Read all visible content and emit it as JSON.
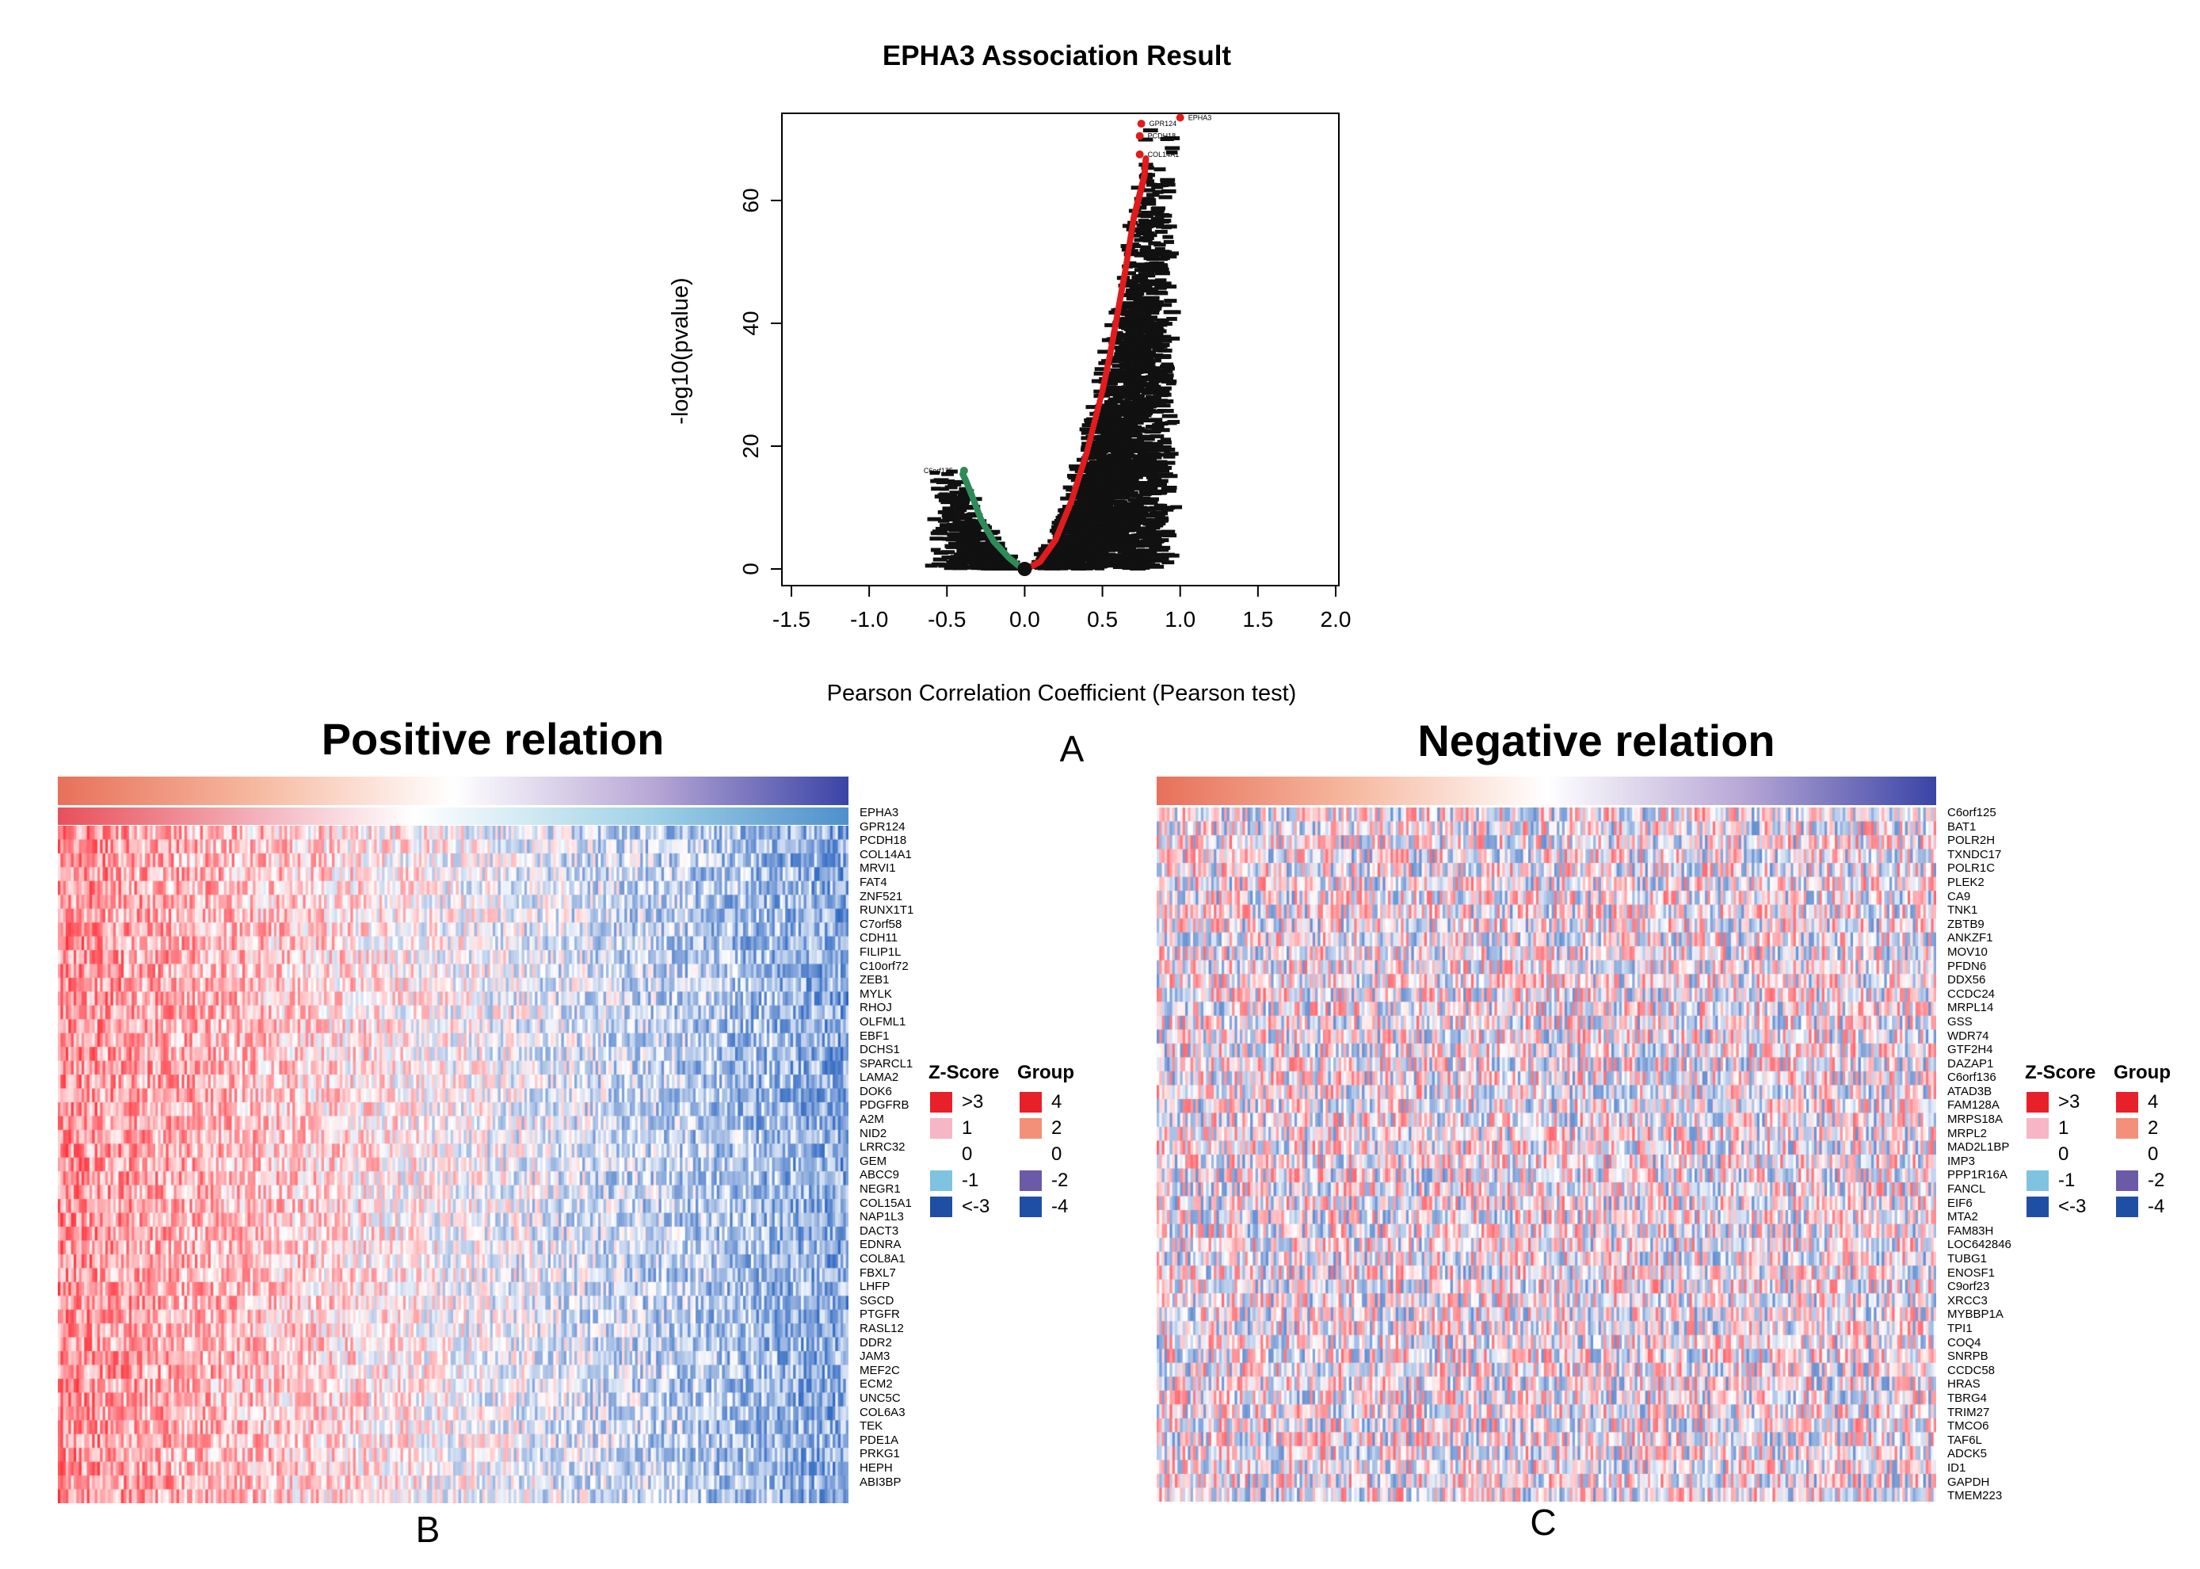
{
  "figure": {
    "panel_letters": {
      "a": "A",
      "b": "B",
      "c": "C"
    }
  },
  "chart_data": [
    {
      "type": "scatter",
      "title": "EPHA3 Association Result",
      "xlabel": "Pearson Correlation Coefficient (Pearson test)",
      "ylabel": "-log10(pvalue)",
      "xlim": [
        -1.5,
        2.0
      ],
      "ylim": [
        0,
        72
      ],
      "xticks": [
        "-1.5",
        "-1.0",
        "-0.5",
        "0.0",
        "0.5",
        "1.0",
        "1.5",
        "2.0"
      ],
      "yticks": [
        "0",
        "20",
        "40",
        "60"
      ],
      "grid": false,
      "colors": {
        "positive": "#e01c1c",
        "negative": "#2e8b57",
        "labels": "#000000"
      },
      "series": [
        {
          "name": "positive",
          "x": [
            0.02,
            0.1,
            0.2,
            0.3,
            0.4,
            0.5,
            0.55,
            0.6,
            0.65,
            0.7,
            0.72,
            0.73,
            0.74,
            0.75,
            0.76,
            0.77,
            0.78
          ],
          "y": [
            0.1,
            1.2,
            4.8,
            11,
            19,
            29,
            35,
            42,
            49,
            57,
            59,
            60,
            61,
            62,
            63,
            64,
            67
          ]
        },
        {
          "name": "negative",
          "x": [
            -0.02,
            -0.1,
            -0.2,
            -0.28,
            -0.34,
            -0.38,
            -0.4
          ],
          "y": [
            0.1,
            1.8,
            4.5,
            8,
            12,
            14.5,
            15.5
          ]
        }
      ],
      "annotations": [
        {
          "text": "EPHA3",
          "x": 1.0,
          "y": 73.5
        },
        {
          "text": "GPR124",
          "x": 0.75,
          "y": 72.5
        },
        {
          "text": "PCDH18",
          "x": 0.74,
          "y": 70.5
        },
        {
          "text": "COL14A1",
          "x": 0.74,
          "y": 67.5
        },
        {
          "text": "C6orf125",
          "x": -0.65,
          "y": 16
        }
      ]
    },
    {
      "type": "heatmap",
      "title": "Positive relation",
      "rows": [
        "EPHA3",
        "GPR124",
        "PCDH18",
        "COL14A1",
        "MRVI1",
        "FAT4",
        "ZNF521",
        "RUNX1T1",
        "C7orf58",
        "CDH11",
        "FILIP1L",
        "C10orf72",
        "ZEB1",
        "MYLK",
        "RHOJ",
        "OLFML1",
        "EBF1",
        "DCHS1",
        "SPARCL1",
        "LAMA2",
        "DOK6",
        "PDGFRB",
        "A2M",
        "NID2",
        "LRRC32",
        "GEM",
        "ABCC9",
        "NEGR1",
        "COL15A1",
        "NAP1L3",
        "DACT3",
        "EDNRA",
        "COL8A1",
        "FBXL7",
        "LHFP",
        "SGCD",
        "PTGFR",
        "RASL12",
        "DDR2",
        "JAM3",
        "MEF2C",
        "ECM2",
        "UNC5C",
        "COL6A3",
        "TEK",
        "PDE1A",
        "PRKG1",
        "HEPH",
        "ABI3BP"
      ],
      "pattern": "high z-scores (red) on left columns, low z-scores (blue) on right columns"
    },
    {
      "type": "heatmap",
      "title": "Negative relation",
      "rows": [
        "C6orf125",
        "BAT1",
        "POLR2H",
        "TXNDC17",
        "POLR1C",
        "PLEK2",
        "CA9",
        "TNK1",
        "ZBTB9",
        "ANKZF1",
        "MOV10",
        "PFDN6",
        "DDX56",
        "CCDC24",
        "MRPL14",
        "GSS",
        "WDR74",
        "GTF2H4",
        "DAZAP1",
        "C6orf136",
        "ATAD3B",
        "FAM128A",
        "MRPS18A",
        "MRPL2",
        "MAD2L1BP",
        "IMP3",
        "PPP1R16A",
        "FANCL",
        "EIF6",
        "MTA2",
        "FAM83H",
        "LOC642846",
        "TUBG1",
        "ENOSF1",
        "C9orf23",
        "XRCC3",
        "MYBBP1A",
        "TPI1",
        "COQ4",
        "SNRPB",
        "CCDC58",
        "HRAS",
        "TBRG4",
        "TRIM27",
        "TMCO6",
        "TAF6L",
        "ADCK5",
        "ID1",
        "GAPDH",
        "TMEM223"
      ],
      "pattern": "mixed z-scores with no strong column gradient"
    }
  ],
  "legend": {
    "zscore_title": "Z-Score",
    "group_title": "Group",
    "zscore_items": [
      {
        "label": ">3",
        "color": "#e8202a"
      },
      {
        "label": "1",
        "color": "#f7b6c6"
      },
      {
        "label": "0",
        "color": ""
      },
      {
        "label": "-1",
        "color": "#7ec3e0"
      },
      {
        "label": "<-3",
        "color": "#1f4fa5"
      }
    ],
    "group_items": [
      {
        "label": "4",
        "color": "#e8202a"
      },
      {
        "label": "2",
        "color": "#f2907a"
      },
      {
        "label": "0",
        "color": ""
      },
      {
        "label": "-2",
        "color": "#6b5aa8"
      },
      {
        "label": "-4",
        "color": "#1f4fa5"
      }
    ]
  }
}
